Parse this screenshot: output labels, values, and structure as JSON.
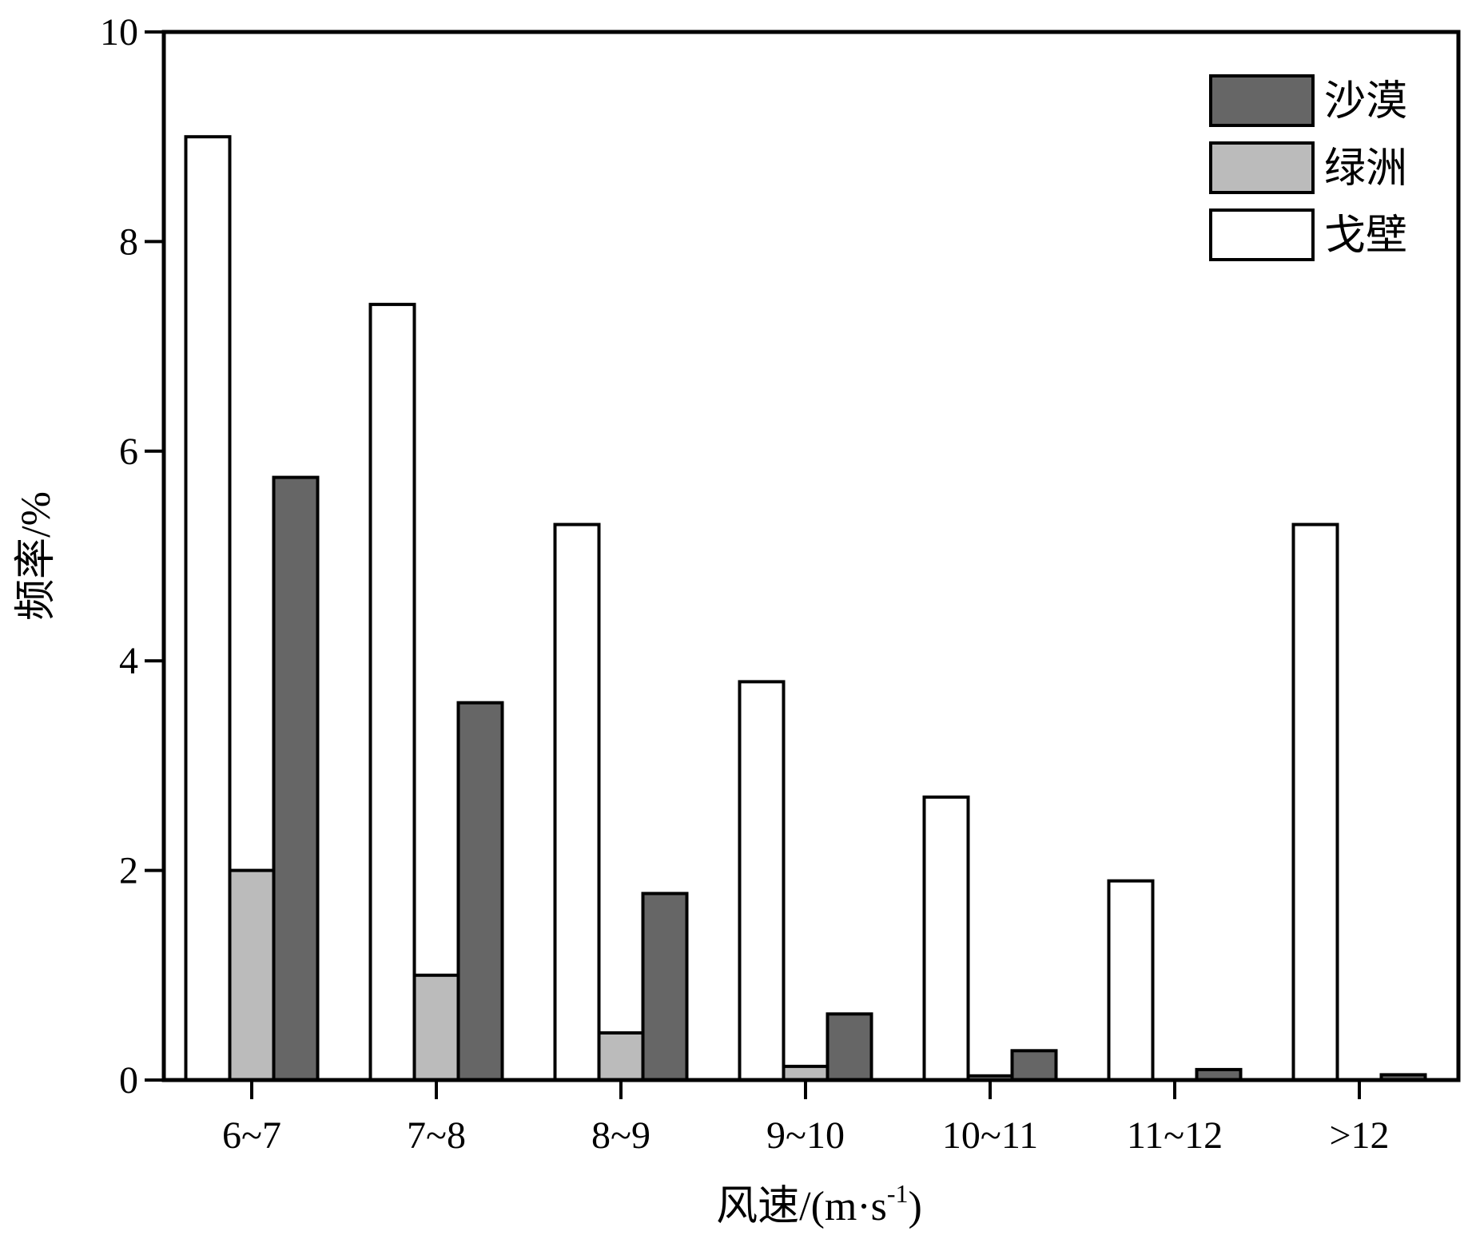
{
  "chart_data": {
    "type": "bar",
    "title": "",
    "xlabel": "风速/(m·s",
    "xlabel_superscript": "-1",
    "xlabel_suffix": ")",
    "ylabel": "频率/%",
    "ylim": [
      0,
      10
    ],
    "yticks": [
      0,
      2,
      4,
      6,
      8,
      10
    ],
    "grid": false,
    "legend_position": "top-right",
    "categories": [
      "6~7",
      "7~8",
      "8~9",
      "9~10",
      "10~11",
      "11~12",
      ">12"
    ],
    "series": [
      {
        "name": "戈壁",
        "color": "#ffffff",
        "values": [
          9.0,
          7.4,
          5.3,
          3.8,
          2.7,
          1.9,
          5.3
        ]
      },
      {
        "name": "绿洲",
        "color": "#bbbbbb",
        "values": [
          2.0,
          1.0,
          0.45,
          0.13,
          0.04,
          0.0,
          0.0
        ]
      },
      {
        "name": "沙漠",
        "color": "#666666",
        "values": [
          5.75,
          3.6,
          1.78,
          0.63,
          0.28,
          0.1,
          0.05
        ]
      }
    ],
    "legend_order": [
      "沙漠",
      "绿洲",
      "戈壁"
    ]
  }
}
